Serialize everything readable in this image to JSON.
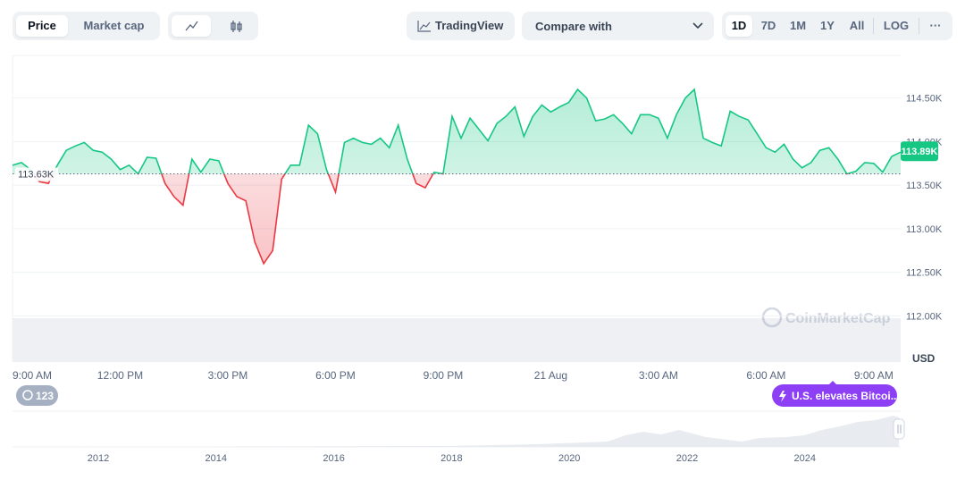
{
  "toolbar": {
    "tabs": [
      "Price",
      "Market cap"
    ],
    "tradingview": "TradingView",
    "compare": "Compare with",
    "ranges": [
      "1D",
      "7D",
      "1M",
      "1Y",
      "All"
    ],
    "log": "LOG",
    "more": "···"
  },
  "chart_data": {
    "type": "area",
    "x": [
      0,
      0.25,
      0.5,
      0.75,
      1,
      1.25,
      1.5,
      1.75,
      2,
      2.25,
      2.5,
      2.75,
      3,
      3.25,
      3.5,
      3.75,
      4,
      4.25,
      4.5,
      4.75,
      5,
      5.25,
      5.5,
      5.75,
      6,
      6.25,
      6.5,
      6.75,
      7,
      7.25,
      7.5,
      7.75,
      8,
      8.25,
      8.5,
      8.75,
      9,
      9.25,
      9.5,
      9.75,
      10,
      10.25,
      10.5,
      10.75,
      11,
      11.25,
      11.5,
      11.75,
      12,
      12.25,
      12.5,
      12.75,
      13,
      13.25,
      13.5,
      13.75,
      14,
      14.25,
      14.5,
      14.75,
      15,
      15.25,
      15.5,
      15.75,
      16,
      16.25,
      16.5,
      16.75,
      17,
      17.25,
      17.5,
      17.75,
      18,
      18.25,
      18.5,
      18.75,
      19,
      19.25,
      19.5,
      19.75,
      20,
      20.25,
      20.5,
      20.75,
      21,
      21.25,
      21.5,
      21.75,
      22,
      22.25,
      22.5,
      22.75,
      23,
      23.25,
      23.5,
      23.75,
      24,
      24.25,
      24.5,
      24.75
    ],
    "values": [
      113730,
      113760,
      113680,
      113540,
      113520,
      113730,
      113900,
      113950,
      113990,
      113900,
      113880,
      113800,
      113680,
      113730,
      113630,
      113820,
      113810,
      113520,
      113370,
      113270,
      113800,
      113650,
      113800,
      113780,
      113520,
      113370,
      113320,
      112850,
      112600,
      112750,
      113570,
      113730,
      113730,
      114190,
      114090,
      113680,
      113420,
      113990,
      114040,
      113990,
      113970,
      114040,
      113930,
      114190,
      113800,
      113520,
      113470,
      113650,
      113630,
      114290,
      114040,
      114270,
      114140,
      114010,
      114210,
      114290,
      114400,
      114060,
      114290,
      114420,
      114340,
      114400,
      114450,
      114600,
      114500,
      114240,
      114260,
      114310,
      114210,
      114090,
      114310,
      114310,
      114270,
      114040,
      114310,
      114500,
      114600,
      114040,
      113990,
      113950,
      114350,
      114290,
      114250,
      114090,
      113930,
      113880,
      113970,
      113800,
      113700,
      113760,
      113900,
      113930,
      113800,
      113630,
      113660,
      113760,
      113750,
      113650,
      113830,
      113880
    ],
    "xlim": [
      0,
      24.75
    ],
    "xticks": [
      {
        "value": 0,
        "label": "9:00 AM"
      },
      {
        "value": 3,
        "label": "12:00 PM"
      },
      {
        "value": 6,
        "label": "3:00 PM"
      },
      {
        "value": 9,
        "label": "6:00 PM"
      },
      {
        "value": 12,
        "label": "9:00 PM"
      },
      {
        "value": 15,
        "label": "21 Aug"
      },
      {
        "value": 18,
        "label": "3:00 AM"
      },
      {
        "value": 21,
        "label": "6:00 AM"
      },
      {
        "value": 24,
        "label": "9:00 AM"
      }
    ],
    "ylim": [
      111470,
      114990
    ],
    "yticks": [
      {
        "value": 112000,
        "label": "112.00K"
      },
      {
        "value": 112500,
        "label": "112.50K"
      },
      {
        "value": 113000,
        "label": "113.00K"
      },
      {
        "value": 113500,
        "label": "113.50K"
      },
      {
        "value": 114000,
        "label": "114.00K"
      },
      {
        "value": 114500,
        "label": "114.50K"
      }
    ],
    "grid": true,
    "baseline": {
      "value": 113630,
      "label": "113.63K"
    },
    "current": {
      "value": 113890,
      "label": "113.89K"
    },
    "up_color": "#16c784",
    "down_color": "#ea3943",
    "unit": "USD",
    "watermark": "CoinMarketCap"
  },
  "overlay": {
    "alerts": "123",
    "event": "U.S. elevates Bitcoi..."
  },
  "navigator": {
    "years": [
      "2012",
      "2014",
      "2016",
      "2018",
      "2020",
      "2022",
      "2024"
    ]
  }
}
